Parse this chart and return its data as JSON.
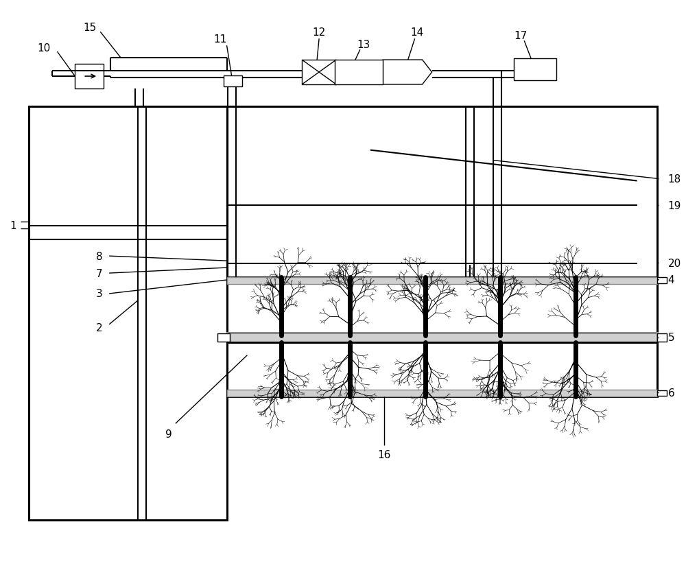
{
  "bg_color": "#ffffff",
  "fig_width": 10.0,
  "fig_height": 8.29,
  "lw_thick": 2.2,
  "lw_med": 1.5,
  "lw_thin": 1.0,
  "gray_fill": "#d0d0d0",
  "white_fill": "#ffffff",
  "label_fs": 11
}
